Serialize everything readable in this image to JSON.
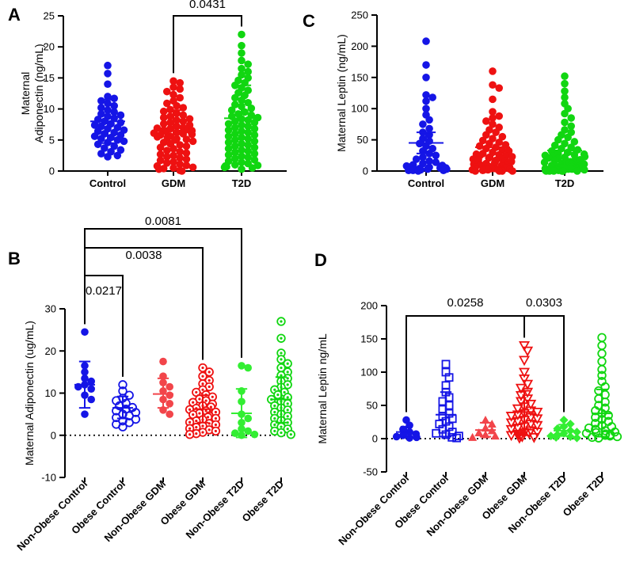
{
  "figure": {
    "colors": {
      "blue": "#1515e6",
      "red": "#ee1111",
      "green": "#11d611",
      "lightred": "#f2454a",
      "lightgreen": "#33ee33",
      "axis": "#000000"
    }
  },
  "chart_data": [
    {
      "panel": "A",
      "type": "scatter",
      "ylabel_line1": "Maternal",
      "ylabel_line2": "Adiponectin  (ng/mL)",
      "ylim": [
        0,
        25
      ],
      "yticks": [
        0,
        5,
        10,
        15,
        20,
        25
      ],
      "categories": [
        "Control",
        "GDM",
        "T2D"
      ],
      "groups": [
        {
          "name": "Control",
          "color": "blue",
          "marker": "filled-circle",
          "mean": 8.0,
          "sd_low": 4.5,
          "sd_high": 11.5,
          "n": 42,
          "min": 2.3,
          "max": 17.0,
          "points": [
            17.0,
            15.7,
            14.0,
            12.0,
            11.7,
            11.3,
            10.9,
            10.5,
            10.2,
            9.8,
            9.5,
            9.2,
            9.0,
            8.8,
            8.5,
            8.3,
            8.0,
            7.8,
            7.6,
            7.4,
            7.2,
            7.0,
            6.8,
            6.6,
            6.4,
            6.2,
            6.0,
            5.8,
            5.6,
            5.4,
            5.2,
            5.0,
            4.8,
            4.6,
            4.3,
            4.0,
            3.7,
            3.4,
            3.1,
            2.8,
            2.5,
            2.3
          ]
        },
        {
          "name": "GDM",
          "color": "red",
          "marker": "filled-circle",
          "mean": 6.5,
          "sd_low": 3.3,
          "sd_high": 9.8,
          "n": 70,
          "min": 0.0,
          "max": 14.5,
          "points": [
            14.5,
            14.2,
            13.5,
            13.2,
            12.8,
            12.3,
            11.8,
            11.3,
            10.9,
            10.5,
            10.2,
            9.9,
            9.6,
            9.3,
            9.0,
            8.8,
            8.6,
            8.4,
            8.2,
            8.0,
            7.8,
            7.6,
            7.4,
            7.2,
            7.0,
            6.9,
            6.8,
            6.7,
            6.6,
            6.5,
            6.4,
            6.3,
            6.2,
            6.1,
            6.0,
            5.9,
            5.8,
            5.6,
            5.5,
            5.4,
            5.2,
            5.1,
            5.0,
            4.8,
            4.6,
            4.4,
            4.2,
            4.0,
            3.8,
            3.6,
            3.3,
            3.1,
            2.9,
            2.7,
            2.5,
            2.3,
            2.1,
            1.9,
            1.7,
            1.5,
            1.3,
            1.1,
            0.9,
            0.8,
            0.6,
            0.5,
            0.4,
            0.3,
            0.1,
            0.0
          ]
        },
        {
          "name": "T2D",
          "color": "green",
          "marker": "filled-circle",
          "mean": 8.5,
          "sd_low": 3.3,
          "sd_high": 13.8,
          "n": 72,
          "min": 0.3,
          "max": 22.0,
          "points": [
            22.0,
            20.2,
            19.0,
            17.8,
            17.2,
            16.5,
            16.0,
            15.5,
            15.0,
            14.6,
            14.2,
            13.8,
            13.4,
            13.0,
            12.6,
            12.2,
            11.8,
            11.4,
            11.0,
            10.7,
            10.4,
            10.1,
            9.8,
            9.5,
            9.2,
            9.0,
            8.8,
            8.6,
            8.4,
            8.2,
            8.0,
            7.8,
            7.6,
            7.4,
            7.2,
            7.0,
            6.8,
            6.6,
            6.4,
            6.2,
            6.0,
            5.8,
            5.6,
            5.4,
            5.2,
            5.0,
            4.8,
            4.6,
            4.4,
            4.2,
            4.0,
            3.8,
            3.6,
            3.4,
            3.2,
            3.0,
            2.8,
            2.6,
            2.4,
            2.2,
            2.0,
            1.8,
            1.6,
            1.4,
            1.2,
            1.0,
            0.9,
            0.8,
            0.7,
            0.6,
            0.5,
            0.3
          ]
        }
      ],
      "comparisons": [
        {
          "from": 1,
          "to": 2,
          "p": "0.0431",
          "level": 0
        }
      ]
    },
    {
      "panel": "C",
      "type": "scatter",
      "ylabel_line1": "Maternal Leptin (ng/mL)",
      "ylim": [
        0,
        250
      ],
      "yticks": [
        0,
        50,
        100,
        150,
        200,
        250
      ],
      "categories": [
        "Control",
        "GDM",
        "T2D"
      ],
      "groups": [
        {
          "name": "Control",
          "color": "blue",
          "marker": "filled-circle",
          "mean": 45,
          "sd_low": 28,
          "sd_high": 62,
          "n": 44,
          "min": 0,
          "max": 208,
          "points": [
            208,
            170,
            150,
            122,
            118,
            112,
            100,
            90,
            82,
            75,
            68,
            62,
            58,
            52,
            48,
            44,
            40,
            36,
            32,
            28,
            25,
            22,
            19,
            16,
            14,
            12,
            10,
            9,
            8,
            7,
            6,
            5,
            5,
            4,
            4,
            3,
            3,
            2,
            2,
            2,
            1,
            1,
            1,
            0
          ]
        },
        {
          "name": "GDM",
          "color": "red",
          "marker": "filled-circle",
          "mean": 38,
          "sd_low": 0,
          "sd_high": 38,
          "n": 72,
          "min": 0,
          "max": 160,
          "points": [
            160,
            138,
            133,
            115,
            95,
            88,
            85,
            80,
            75,
            70,
            66,
            62,
            58,
            55,
            52,
            49,
            46,
            44,
            42,
            40,
            38,
            36,
            34,
            32,
            30,
            28,
            27,
            26,
            25,
            24,
            23,
            22,
            21,
            20,
            19,
            18,
            17,
            16,
            15,
            14,
            13,
            12,
            11,
            10,
            9,
            9,
            8,
            8,
            7,
            7,
            6,
            6,
            5,
            5,
            4,
            4,
            4,
            3,
            3,
            3,
            2,
            2,
            2,
            2,
            1,
            1,
            1,
            1,
            0,
            0,
            0,
            0
          ]
        },
        {
          "name": "T2D",
          "color": "green",
          "marker": "filled-circle",
          "mean": 33,
          "sd_low": 0,
          "sd_high": 33,
          "n": 78,
          "min": 0,
          "max": 152,
          "points": [
            152,
            140,
            128,
            118,
            108,
            100,
            92,
            85,
            78,
            72,
            66,
            62,
            58,
            54,
            50,
            47,
            44,
            41,
            38,
            36,
            34,
            32,
            30,
            28,
            27,
            26,
            25,
            24,
            23,
            22,
            21,
            20,
            19,
            18,
            17,
            16,
            15,
            14,
            13,
            12,
            12,
            11,
            11,
            10,
            10,
            9,
            9,
            8,
            8,
            7,
            7,
            6,
            6,
            5,
            5,
            5,
            4,
            4,
            4,
            3,
            3,
            3,
            2,
            2,
            2,
            2,
            1,
            1,
            1,
            1,
            1,
            0,
            0,
            0,
            0,
            0,
            0,
            0
          ]
        }
      ],
      "comparisons": []
    },
    {
      "panel": "B",
      "type": "scatter",
      "ylabel_line1": "Maternal Adiponectin  (ug/mL)",
      "ylim": [
        -10,
        30
      ],
      "yticks": [
        -10,
        0,
        10,
        20,
        30
      ],
      "dotted_zero": true,
      "categories": [
        "Non-Obese Control",
        "Obese Control",
        "Non-Obese GDM",
        "Obese GDM",
        "Non-Obese T2D",
        "Obese T2D"
      ],
      "groups": [
        {
          "name": "Non-Obese Control",
          "color": "blue",
          "marker": "filled-circle",
          "mean": 12.0,
          "sd_low": 6.5,
          "sd_high": 17.5,
          "points": [
            24.5,
            16.5,
            15.0,
            13.5,
            12.8,
            12.0,
            11.5,
            11.0,
            9.5,
            8.5,
            5.0
          ]
        },
        {
          "name": "Obese Control",
          "color": "blue",
          "marker": "open-circle",
          "mean": 6.5,
          "sd_low": 4.0,
          "sd_high": 9.2,
          "points": [
            12.0,
            10.5,
            9.5,
            8.8,
            8.2,
            7.6,
            7.0,
            6.6,
            6.2,
            5.8,
            5.4,
            5.0,
            4.6,
            4.2,
            3.8,
            3.4,
            3.0,
            2.6,
            2.0
          ]
        },
        {
          "name": "Non-Obese GDM",
          "color": "lightred",
          "marker": "filled-circle",
          "mean": 9.8,
          "sd_low": 6.5,
          "sd_high": 13.5,
          "points": [
            17.5,
            14.0,
            12.5,
            11.5,
            10.5,
            9.5,
            8.5,
            7.5,
            6.0,
            5.0
          ]
        },
        {
          "name": "Obese GDM",
          "color": "red",
          "marker": "dotted-circle",
          "mean": 6.2,
          "sd_low": 3.0,
          "sd_high": 9.5,
          "points": [
            16.0,
            15.0,
            14.0,
            13.0,
            12.2,
            11.5,
            10.8,
            10.2,
            9.6,
            9.1,
            8.6,
            8.2,
            7.8,
            7.4,
            7.0,
            6.7,
            6.4,
            6.1,
            5.8,
            5.5,
            5.2,
            4.9,
            4.6,
            4.3,
            4.0,
            3.7,
            3.4,
            3.1,
            2.8,
            2.5,
            2.2,
            1.9,
            1.6,
            1.3,
            1.0,
            0.7,
            0.4,
            0.2
          ]
        },
        {
          "name": "Non-Obese T2D",
          "color": "lightgreen",
          "marker": "filled-circle",
          "mean": 5.2,
          "sd_low": -0.5,
          "sd_high": 11.0,
          "points": [
            16.5,
            16.0,
            10.5,
            8.0,
            5.0,
            4.0,
            3.0,
            1.5,
            1.0,
            0.5,
            0.2,
            0.0
          ]
        },
        {
          "name": "Obese T2D",
          "color": "green",
          "marker": "dotted-circle",
          "mean": 8.5,
          "sd_low": 3.0,
          "sd_high": 13.8,
          "points": [
            27.0,
            23.0,
            19.5,
            18.0,
            17.0,
            16.0,
            15.0,
            14.2,
            13.5,
            12.8,
            12.0,
            11.4,
            10.8,
            10.2,
            9.6,
            9.0,
            8.5,
            8.0,
            7.5,
            7.0,
            6.5,
            6.0,
            5.5,
            5.0,
            4.5,
            4.0,
            3.5,
            3.0,
            2.5,
            2.0,
            1.5,
            1.0,
            0.6,
            0.2
          ]
        }
      ],
      "comparisons": [
        {
          "from": 0,
          "to": 1,
          "p": "0.0217",
          "level": 0
        },
        {
          "from": 0,
          "to": 3,
          "p": "0.0038",
          "level": 1
        },
        {
          "from": 0,
          "to": 4,
          "p": "0.0081",
          "level": 2
        }
      ]
    },
    {
      "panel": "D",
      "type": "scatter",
      "ylabel_line1": "Maternal Leptin ng/mL",
      "ylim": [
        -50,
        200
      ],
      "yticks": [
        -50,
        0,
        50,
        100,
        150,
        200
      ],
      "dotted_zero": true,
      "categories": [
        "Non-Obese Control",
        "Obese Control",
        "Non-Obese GDM",
        "Obese GDM",
        "Non-Obese T2D",
        "Obese T2D"
      ],
      "groups": [
        {
          "name": "Non-Obese Control",
          "color": "blue",
          "marker": "filled-circle",
          "mean": 10,
          "sd_low": 2,
          "sd_high": 18,
          "points": [
            28,
            20,
            14,
            10,
            7,
            5,
            3,
            2,
            1
          ]
        },
        {
          "name": "Obese Control",
          "color": "blue",
          "marker": "open-square",
          "mean": 36,
          "sd_low": 3,
          "sd_high": 70,
          "points": [
            112,
            100,
            92,
            80,
            70,
            62,
            56,
            50,
            44,
            38,
            34,
            30,
            26,
            22,
            18,
            14,
            10,
            8,
            6,
            4,
            2,
            1
          ]
        },
        {
          "name": "Non-Obese GDM",
          "color": "lightred",
          "marker": "filled-triangle",
          "mean": 13,
          "sd_low": 3,
          "sd_high": 24,
          "points": [
            28,
            22,
            16,
            12,
            9,
            6,
            4,
            2
          ]
        },
        {
          "name": "Obese GDM",
          "color": "red",
          "marker": "open-triangle-down",
          "mean": 40,
          "sd_low": 5,
          "sd_high": 72,
          "points": [
            140,
            132,
            118,
            100,
            90,
            82,
            76,
            70,
            65,
            60,
            56,
            52,
            48,
            45,
            42,
            40,
            38,
            36,
            34,
            32,
            30,
            28,
            26,
            24,
            22,
            20,
            18,
            16,
            14,
            12,
            10,
            9,
            8,
            7,
            6,
            5,
            4,
            3,
            2,
            1
          ]
        },
        {
          "name": "Non-Obese T2D",
          "color": "lightgreen",
          "marker": "filled-diamond",
          "mean": 12,
          "sd_low": 4,
          "sd_high": 21,
          "points": [
            28,
            22,
            18,
            15,
            12,
            10,
            8,
            6,
            4,
            3,
            2,
            1
          ]
        },
        {
          "name": "Obese T2D",
          "color": "green",
          "marker": "open-circle",
          "mean": 38,
          "sd_low": 3,
          "sd_high": 74,
          "points": [
            152,
            140,
            128,
            116,
            104,
            95,
            86,
            78,
            72,
            66,
            60,
            55,
            50,
            46,
            42,
            38,
            35,
            32,
            29,
            26,
            23,
            20,
            18,
            16,
            14,
            12,
            10,
            9,
            8,
            7,
            6,
            5,
            4,
            3,
            2,
            1
          ]
        }
      ],
      "comparisons": [
        {
          "from": 0,
          "to": 3,
          "p": "0.0258",
          "level": 0
        },
        {
          "from": 3,
          "to": 4,
          "p": "0.0303",
          "level": 0
        }
      ]
    }
  ]
}
